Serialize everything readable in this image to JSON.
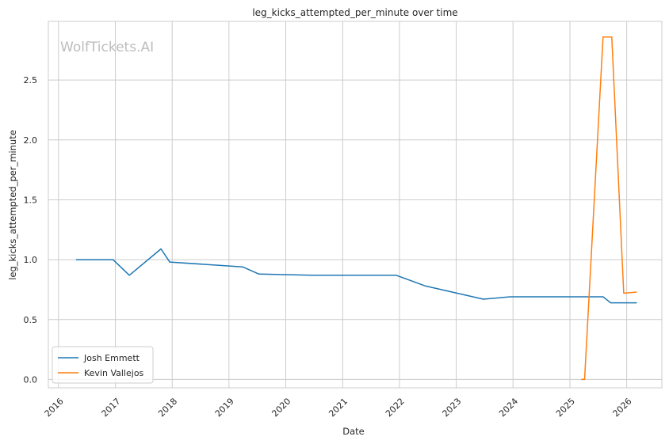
{
  "chart_data": {
    "type": "line",
    "title": "leg_kicks_attempted_per_minute over time",
    "xlabel": "Date",
    "ylabel": "leg_kicks_attempted_per_minute",
    "watermark": "WolfTickets.AI",
    "x_ticks": [
      "2016",
      "2017",
      "2018",
      "2019",
      "2020",
      "2021",
      "2022",
      "2023",
      "2024",
      "2025",
      "2026"
    ],
    "y_ticks": [
      "0.0",
      "0.5",
      "1.0",
      "1.5",
      "2.0",
      "2.5"
    ],
    "xlim": [
      "2015-10-28",
      "2026-08-15"
    ],
    "ylim": [
      -0.07,
      2.99
    ],
    "grid": true,
    "legend_position": "lower-left",
    "series": [
      {
        "name": "Josh Emmett",
        "color": "#1f77b4",
        "points": [
          [
            "2016-04-23",
            1.0
          ],
          [
            "2016-12-17",
            1.0
          ],
          [
            "2017-04-01",
            0.87
          ],
          [
            "2017-10-21",
            1.09
          ],
          [
            "2017-12-16",
            0.98
          ],
          [
            "2019-03-30",
            0.94
          ],
          [
            "2019-07-13",
            0.88
          ],
          [
            "2020-06-20",
            0.87
          ],
          [
            "2021-12-11",
            0.87
          ],
          [
            "2022-06-18",
            0.78
          ],
          [
            "2023-06-24",
            0.67
          ],
          [
            "2023-12-16",
            0.69
          ],
          [
            "2025-08-02",
            0.69
          ],
          [
            "2025-09-20",
            0.64
          ],
          [
            "2026-03-07",
            0.64
          ]
        ]
      },
      {
        "name": "Kevin Vallejos",
        "color": "#ff7f0e",
        "points": [
          [
            "2025-03-15",
            0.0
          ],
          [
            "2025-04-05",
            0.0
          ],
          [
            "2025-08-02",
            2.86
          ],
          [
            "2025-09-27",
            2.86
          ],
          [
            "2025-12-13",
            0.72
          ],
          [
            "2026-03-07",
            0.73
          ]
        ]
      }
    ]
  }
}
